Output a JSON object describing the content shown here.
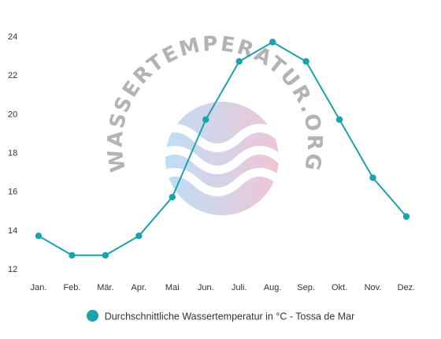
{
  "chart_data": {
    "type": "line",
    "categories": [
      "Jan.",
      "Feb.",
      "Mär.",
      "Apr.",
      "Mai",
      "Jun.",
      "Juli.",
      "Aug.",
      "Sep.",
      "Okt.",
      "Nov.",
      "Dez."
    ],
    "series": [
      {
        "name": "Durchschnittliche Wassertemperatur in °C - Tossa de Mar",
        "values": [
          13.7,
          12.7,
          12.7,
          13.7,
          15.7,
          19.7,
          22.7,
          23.7,
          22.7,
          19.7,
          16.7,
          14.7
        ]
      }
    ],
    "ylim": [
      12,
      24
    ],
    "yticks": [
      12,
      14,
      16,
      18,
      20,
      22,
      24
    ],
    "grid": false,
    "legend": "bottom-center",
    "line_color": "#1ba3ad",
    "title": "",
    "xlabel": "",
    "ylabel": ""
  },
  "watermark": {
    "text": "WASSERTEMPERATUR.ORG",
    "color": "#9a9a9a"
  }
}
